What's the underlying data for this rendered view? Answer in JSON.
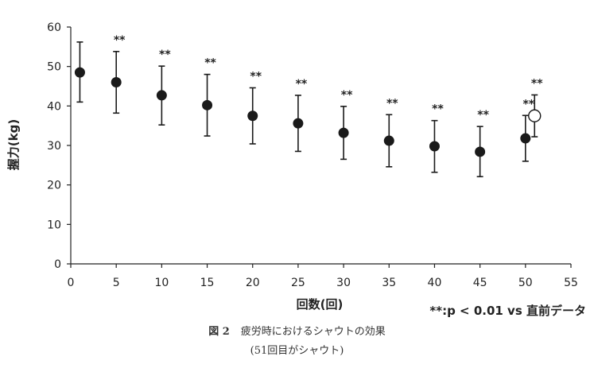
{
  "chart_data": {
    "type": "scatter",
    "ylabel": "握力(kg)",
    "xlabel": "回数(回)",
    "xlim": [
      0,
      55
    ],
    "ylim": [
      0,
      60
    ],
    "x_ticks": [
      "0",
      "5",
      "10",
      "15",
      "20",
      "25",
      "30",
      "35",
      "40",
      "45",
      "50",
      "55"
    ],
    "y_ticks": [
      "0",
      "10",
      "20",
      "30",
      "40",
      "50",
      "60"
    ],
    "grid": false,
    "series": [
      {
        "marker": "filled-circle",
        "color": "#1a1a1a",
        "points": [
          {
            "x": 1,
            "y": 48.5,
            "lo": 41.0,
            "hi": 56.2,
            "sig": ""
          },
          {
            "x": 5,
            "y": 46.0,
            "lo": 38.2,
            "hi": 53.8,
            "sig": "**"
          },
          {
            "x": 10,
            "y": 42.7,
            "lo": 35.2,
            "hi": 50.1,
            "sig": "**"
          },
          {
            "x": 15,
            "y": 40.2,
            "lo": 32.4,
            "hi": 48.0,
            "sig": "**"
          },
          {
            "x": 20,
            "y": 37.5,
            "lo": 30.4,
            "hi": 44.6,
            "sig": "**"
          },
          {
            "x": 25,
            "y": 35.6,
            "lo": 28.5,
            "hi": 42.7,
            "sig": "**"
          },
          {
            "x": 30,
            "y": 33.2,
            "lo": 26.5,
            "hi": 39.9,
            "sig": "**"
          },
          {
            "x": 35,
            "y": 31.2,
            "lo": 24.6,
            "hi": 37.8,
            "sig": "**"
          },
          {
            "x": 40,
            "y": 29.8,
            "lo": 23.2,
            "hi": 36.3,
            "sig": "**"
          },
          {
            "x": 45,
            "y": 28.4,
            "lo": 22.1,
            "hi": 34.8,
            "sig": "**"
          },
          {
            "x": 50,
            "y": 31.8,
            "lo": 26.0,
            "hi": 37.6,
            "sig": "**"
          }
        ]
      },
      {
        "marker": "open-circle",
        "color": "#1a1a1a",
        "points": [
          {
            "x": 51,
            "y": 37.5,
            "lo": 32.2,
            "hi": 42.8,
            "sig": "**"
          }
        ]
      }
    ],
    "note": "**:p < 0.01 vs 直前データ"
  },
  "caption": {
    "figure_number": "図 2",
    "title": "疲労時におけるシャウトの効果",
    "subtitle": "(51回目がシャウト)"
  }
}
